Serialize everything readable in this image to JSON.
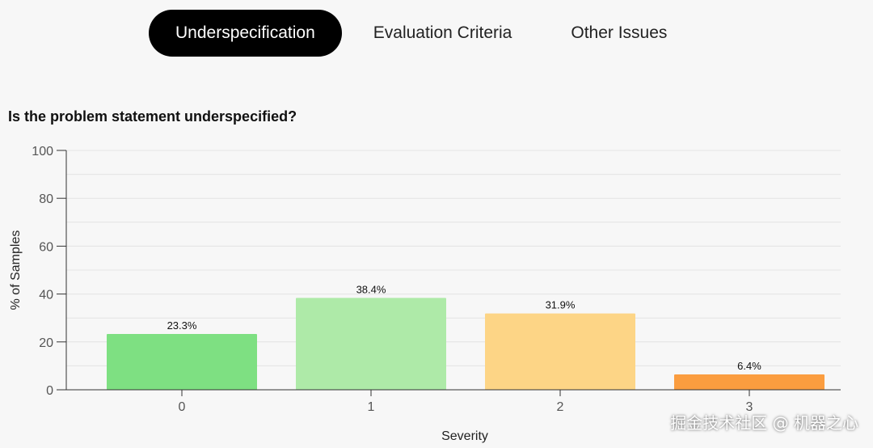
{
  "tabs": [
    {
      "label": "Underspecification",
      "active": true
    },
    {
      "label": "Evaluation Criteria",
      "active": false
    },
    {
      "label": "Other Issues",
      "active": false
    }
  ],
  "question": "Is the problem statement underspecified?",
  "watermark": "掘金技术社区 @ 机器之心",
  "chart_data": {
    "type": "bar",
    "title": "Is the problem statement underspecified?",
    "xlabel": "Severity",
    "ylabel": "% of Samples",
    "categories": [
      "0",
      "1",
      "2",
      "3"
    ],
    "values": [
      23.3,
      38.4,
      31.9,
      6.4
    ],
    "value_labels": [
      "23.3%",
      "38.4%",
      "31.9%",
      "6.4%"
    ],
    "colors": [
      "#7ee082",
      "#aeeaa8",
      "#fdd586",
      "#fb9d3f"
    ],
    "ylim": [
      0,
      100
    ],
    "yticks": [
      0,
      20,
      40,
      60,
      80,
      100
    ],
    "grid": true,
    "legend": "none"
  }
}
